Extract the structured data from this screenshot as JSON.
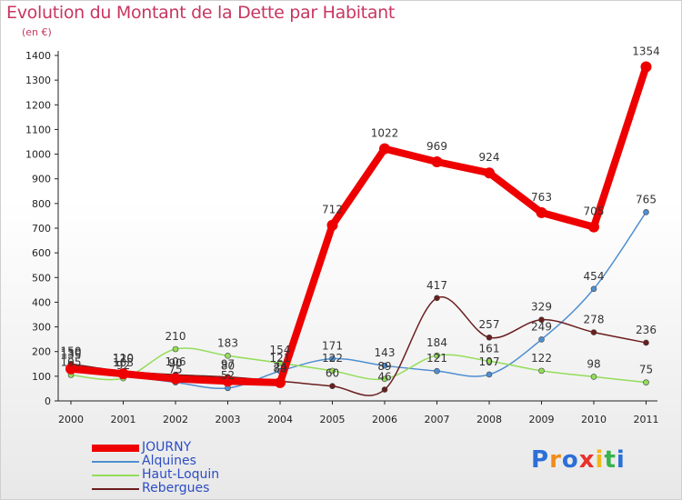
{
  "title": "Evolution du Montant de la Dette par Habitant",
  "unit": "(en €)",
  "logo_text": "Proxiti",
  "chart_data": {
    "type": "line",
    "categories": [
      "2000",
      "2001",
      "2002",
      "2003",
      "2004",
      "2005",
      "2006",
      "2007",
      "2008",
      "2009",
      "2010",
      "2011"
    ],
    "ylim": [
      0,
      1400
    ],
    "yticks": [
      0,
      100,
      200,
      300,
      400,
      500,
      600,
      700,
      800,
      900,
      1000,
      1100,
      1200,
      1300,
      1400
    ],
    "grid": false,
    "legend_position": "bottom-left",
    "series": [
      {
        "name": "JOURNY",
        "color": "#ee0000",
        "values": [
          130,
          110,
          90,
          80,
          74,
          712,
          1022,
          969,
          924,
          763,
          705,
          1354
        ]
      },
      {
        "name": "Alquines",
        "color": "#4f8fd1",
        "values": [
          135,
          103,
          75,
          52,
          121,
          171,
          143,
          121,
          107,
          249,
          454,
          765
        ]
      },
      {
        "name": "Haut-Loquin",
        "color": "#93dd5a",
        "values": [
          105,
          92,
          210,
          183,
          154,
          122,
          89,
          184,
          161,
          122,
          98,
          75
        ]
      },
      {
        "name": "Rebergues",
        "color": "#6b1e1e",
        "values": [
          150,
          120,
          106,
          97,
          80,
          60,
          46,
          417,
          257,
          329,
          278,
          236
        ]
      }
    ],
    "labels": [
      [
        "130",
        "110",
        "90",
        "80",
        "74",
        "712",
        "1022",
        "969",
        "924",
        "763",
        "705",
        "1354"
      ],
      [
        "135",
        "103",
        "75",
        "52",
        "121",
        "171",
        "143",
        "121",
        "107",
        "249",
        "454",
        "765"
      ],
      [
        "105",
        "92",
        "210",
        "183",
        "154",
        "122",
        "89",
        "184",
        "161",
        "122",
        "98",
        "75"
      ],
      [
        "150",
        "120",
        "106",
        "97",
        "80",
        "60",
        "46",
        "417",
        "257",
        "329",
        "278",
        "236"
      ]
    ]
  }
}
